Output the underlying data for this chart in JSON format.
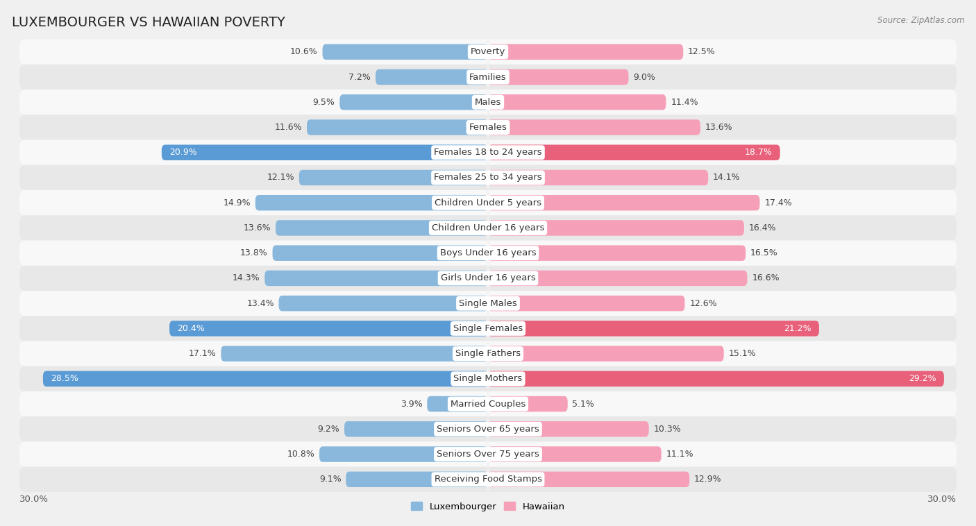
{
  "title": "LUXEMBOURGER VS HAWAIIAN POVERTY",
  "source": "Source: ZipAtlas.com",
  "categories": [
    "Poverty",
    "Families",
    "Males",
    "Females",
    "Females 18 to 24 years",
    "Females 25 to 34 years",
    "Children Under 5 years",
    "Children Under 16 years",
    "Boys Under 16 years",
    "Girls Under 16 years",
    "Single Males",
    "Single Females",
    "Single Fathers",
    "Single Mothers",
    "Married Couples",
    "Seniors Over 65 years",
    "Seniors Over 75 years",
    "Receiving Food Stamps"
  ],
  "luxembourger_values": [
    10.6,
    7.2,
    9.5,
    11.6,
    20.9,
    12.1,
    14.9,
    13.6,
    13.8,
    14.3,
    13.4,
    20.4,
    17.1,
    28.5,
    3.9,
    9.2,
    10.8,
    9.1
  ],
  "hawaiian_values": [
    12.5,
    9.0,
    11.4,
    13.6,
    18.7,
    14.1,
    17.4,
    16.4,
    16.5,
    16.6,
    12.6,
    21.2,
    15.1,
    29.2,
    5.1,
    10.3,
    11.1,
    12.9
  ],
  "luxembourger_color": "#89b8dc",
  "hawaiian_color": "#f5a0b8",
  "luxembourger_highlight_color": "#5b9bd5",
  "hawaiian_highlight_color": "#e8607a",
  "highlight_rows": [
    4,
    11,
    13
  ],
  "background_color": "#f0f0f0",
  "row_bg_even": "#f8f8f8",
  "row_bg_odd": "#e8e8e8",
  "xlim": 30.0,
  "legend_luxembourger": "Luxembourger",
  "legend_hawaiian": "Hawaiian",
  "title_fontsize": 14,
  "label_fontsize": 9.5,
  "value_fontsize": 9,
  "bar_height": 0.62
}
